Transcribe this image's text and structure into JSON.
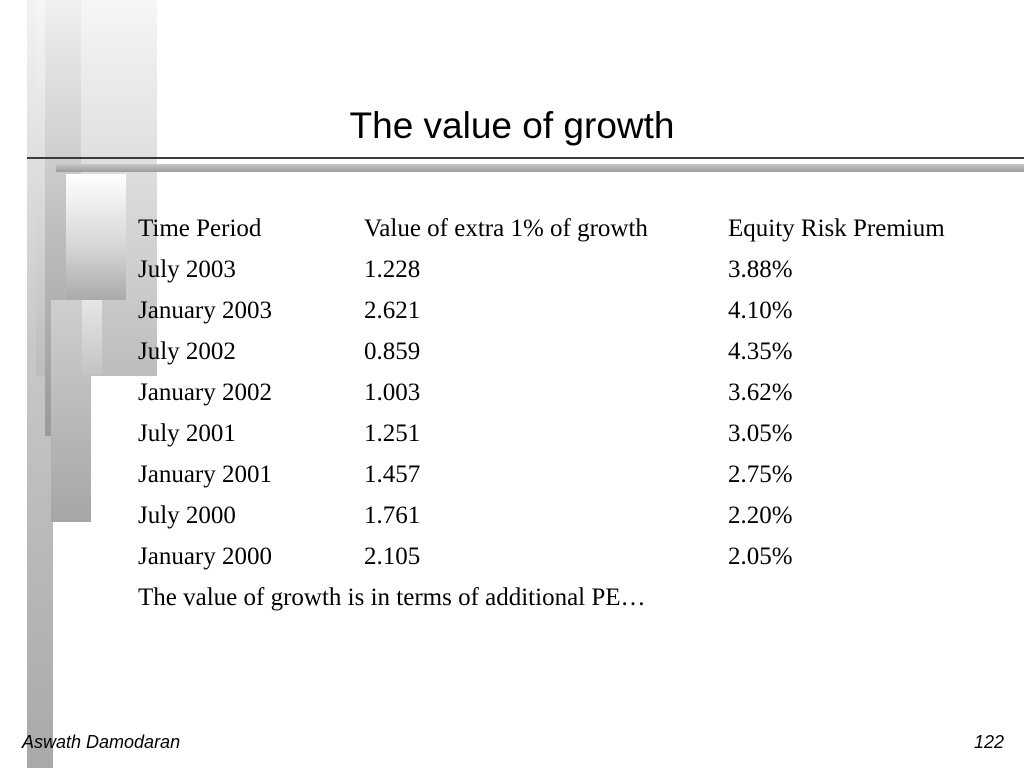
{
  "slide": {
    "title": "The value of growth",
    "headers": [
      "Time Period",
      "Value of extra 1% of growth",
      "Equity Risk Premium"
    ],
    "rows": [
      [
        "July 2003",
        "1.228",
        "3.88%"
      ],
      [
        "January 2003",
        "2.621",
        "4.10%"
      ],
      [
        "July 2002",
        "0.859",
        "4.35%"
      ],
      [
        "January 2002",
        "1.003",
        "3.62%"
      ],
      [
        "July 2001",
        "1.251",
        "3.05%"
      ],
      [
        "January 2001",
        "1.457",
        "2.75%"
      ],
      [
        "July 2000",
        "1.761",
        "2.20%"
      ],
      [
        "January 2000",
        "2.105",
        "2.05%"
      ]
    ],
    "note": "The value of growth is in terms of additional PE…"
  },
  "footer": {
    "author": "Aswath Damodaran",
    "page": "122"
  }
}
